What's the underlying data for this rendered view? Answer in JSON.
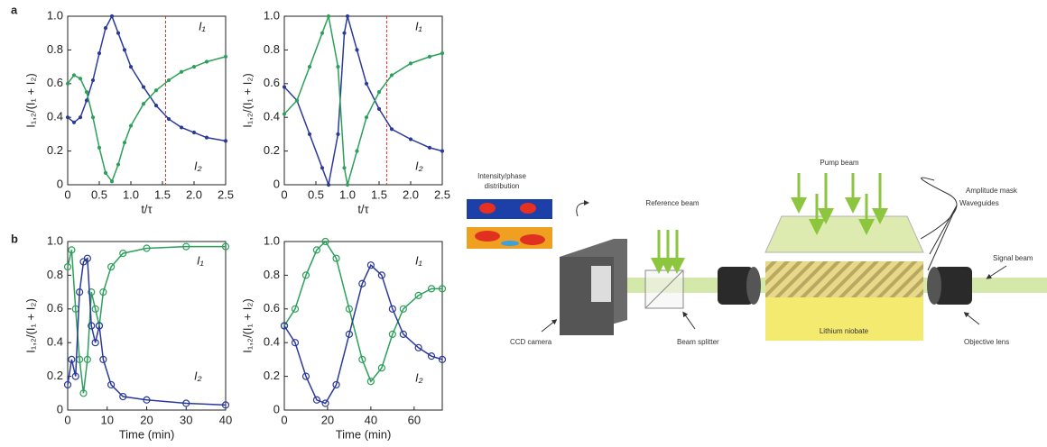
{
  "panel_labels": [
    "a",
    "b"
  ],
  "chart_data": [
    {
      "type": "line",
      "xlabel": "t/τ",
      "ylabel": "I₁,₂/(I₁ + I₂)",
      "xlim": [
        0,
        2.5
      ],
      "ylim": [
        0,
        1
      ],
      "xticks": [
        0,
        0.5,
        {
          "value": 1,
          "label": "1.0"
        },
        1.5,
        {
          "value": 2,
          "label": "2.0"
        },
        2.5
      ],
      "yticks": [
        0,
        0.2,
        0.4,
        0.6,
        0.8,
        {
          "value": 1,
          "label": "1.0"
        }
      ],
      "vline": 1.55,
      "vline_color": "#e03020",
      "annotations": [
        "I₁",
        "I₂"
      ],
      "x": [
        0,
        0.1,
        0.2,
        0.3,
        0.4,
        0.5,
        0.6,
        0.7,
        0.8,
        0.9,
        1.0,
        1.2,
        1.4,
        1.6,
        1.8,
        2.0,
        2.2,
        2.5
      ],
      "series": [
        {
          "color": "#2b3a9a",
          "values": [
            0.4,
            0.37,
            0.4,
            0.5,
            0.62,
            0.78,
            0.93,
            1.0,
            0.9,
            0.8,
            0.7,
            0.58,
            0.47,
            0.39,
            0.34,
            0.31,
            0.28,
            0.26
          ]
        },
        {
          "color": "#2ca05a",
          "values": [
            0.6,
            0.65,
            0.63,
            0.55,
            0.4,
            0.22,
            0.07,
            0.02,
            0.12,
            0.25,
            0.35,
            0.48,
            0.56,
            0.62,
            0.67,
            0.7,
            0.73,
            0.76
          ]
        }
      ]
    },
    {
      "type": "line",
      "xlabel": "t/τ",
      "ylabel": "I₁,₂/(I₁ + I₂)",
      "xlim": [
        0,
        2.5
      ],
      "ylim": [
        0,
        1
      ],
      "xticks": [
        0,
        0.5,
        {
          "value": 1,
          "label": "1.0"
        },
        1.5,
        {
          "value": 2,
          "label": "2.0"
        },
        2.5
      ],
      "yticks": [
        0,
        0.2,
        0.4,
        0.6,
        0.8,
        {
          "value": 1,
          "label": "1.0"
        }
      ],
      "vline": 1.62,
      "vline_color": "#e03020",
      "annotations": [
        "I₁",
        "I₂"
      ],
      "x": [
        0,
        0.2,
        0.4,
        0.6,
        0.7,
        0.85,
        0.95,
        1.0,
        1.15,
        1.3,
        1.5,
        1.7,
        2.0,
        2.3,
        2.5
      ],
      "series": [
        {
          "color": "#2b3a9a",
          "values": [
            0.58,
            0.5,
            0.3,
            0.1,
            0,
            0.3,
            0.9,
            1.0,
            0.8,
            0.6,
            0.45,
            0.33,
            0.27,
            0.22,
            0.2
          ]
        },
        {
          "color": "#2ca05a",
          "values": [
            0.42,
            0.5,
            0.7,
            0.9,
            1.0,
            0.7,
            0.1,
            0,
            0.2,
            0.4,
            0.55,
            0.65,
            0.72,
            0.76,
            0.78
          ]
        }
      ]
    },
    {
      "type": "line",
      "xlabel": "Time (min)",
      "ylabel": "I₁,₂/(I₁ + I₂)",
      "xlim": [
        0,
        40
      ],
      "ylim": [
        0,
        1
      ],
      "xticks": [
        0,
        10,
        20,
        30,
        40
      ],
      "yticks": [
        0,
        0.2,
        0.4,
        0.6,
        0.8,
        {
          "value": 1,
          "label": "1.0"
        }
      ],
      "annotations": [
        "I₁",
        "I₂"
      ],
      "x": [
        0,
        1,
        2,
        3,
        4,
        5,
        6,
        7,
        8,
        9,
        11,
        14,
        20,
        30,
        40
      ],
      "series": [
        {
          "color": "#2ca05a",
          "values": [
            0.85,
            0.95,
            0.6,
            0.3,
            0.1,
            0.3,
            0.7,
            0.6,
            0.5,
            0.7,
            0.85,
            0.93,
            0.96,
            0.97,
            0.97
          ]
        },
        {
          "color": "#2b3a9a",
          "values": [
            0.15,
            0.3,
            0.2,
            0.7,
            0.88,
            0.9,
            0.5,
            0.4,
            0.5,
            0.3,
            0.15,
            0.08,
            0.06,
            0.04,
            0.03
          ]
        }
      ]
    },
    {
      "type": "line",
      "xlabel": "Time (min)",
      "ylabel": "I₁,₂/(I₁ + I₂)",
      "xlim": [
        0,
        73
      ],
      "ylim": [
        0,
        1
      ],
      "xticks": [
        0,
        20,
        40,
        60
      ],
      "yticks": [
        0,
        0.2,
        0.4,
        0.6,
        0.8,
        {
          "value": 1,
          "label": "1.0"
        }
      ],
      "annotations": [
        "I₁",
        "I₂"
      ],
      "x": [
        0,
        5,
        10,
        15,
        19,
        24,
        30,
        36,
        40,
        45,
        50,
        55,
        62,
        68,
        73
      ],
      "series": [
        {
          "color": "#2ca05a",
          "values": [
            0.5,
            0.6,
            0.8,
            0.95,
            1.0,
            0.9,
            0.6,
            0.3,
            0.17,
            0.25,
            0.45,
            0.6,
            0.68,
            0.72,
            0.72
          ]
        },
        {
          "color": "#2b3a9a",
          "values": [
            0.5,
            0.4,
            0.2,
            0.06,
            0.04,
            0.15,
            0.45,
            0.75,
            0.86,
            0.8,
            0.6,
            0.45,
            0.37,
            0.32,
            0.3
          ]
        }
      ]
    }
  ],
  "diagram": {
    "intensity_label": [
      "Intensity/phase",
      "distribution"
    ],
    "reference_beam": "Reference beam",
    "pump_beam": "Pump beam",
    "amplitude_mask": "Amplitude mask",
    "waveguides": "Waveguides",
    "signal_beam": "Signal beam",
    "ccd_camera": "CCD camera",
    "beam_splitter": "Beam splitter",
    "lithium_niobate": "Lithium niobate",
    "objective_lens": "Objective lens"
  }
}
